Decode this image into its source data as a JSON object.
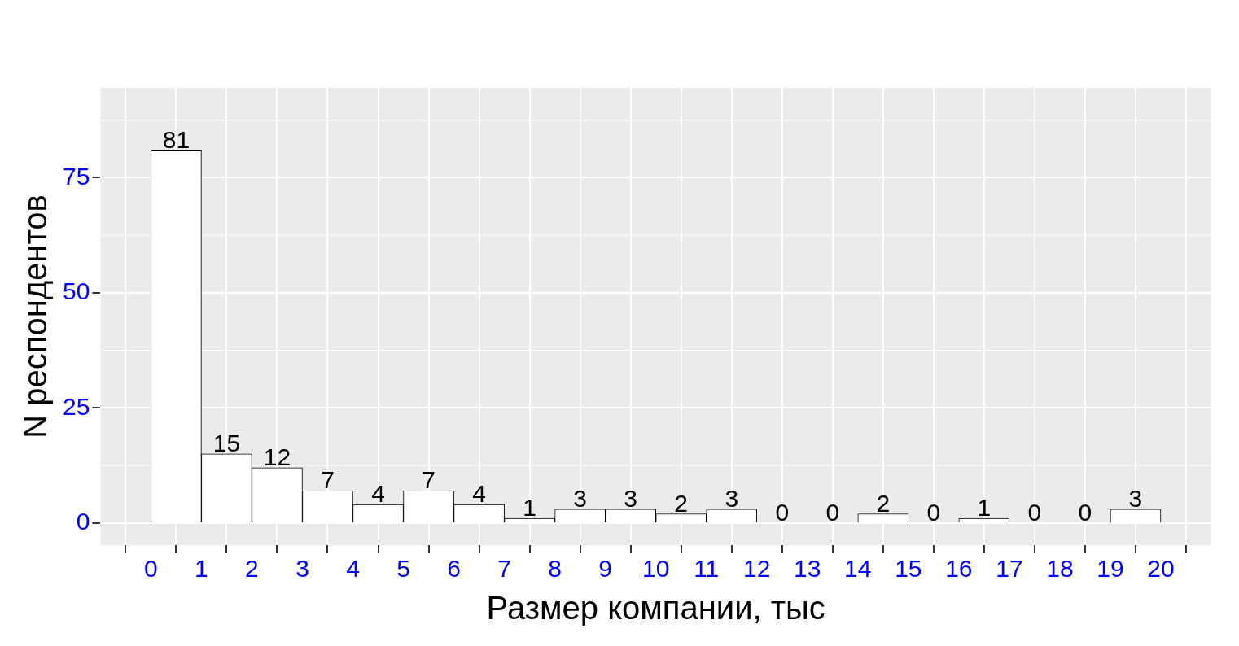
{
  "chart_data": {
    "type": "histogram",
    "xlabel": "Размер компании, тыс",
    "ylabel": "N респондентов",
    "bins": [
      0,
      1,
      2,
      3,
      4,
      5,
      6,
      7,
      8,
      9,
      10,
      11,
      12,
      13,
      14,
      15,
      16,
      17,
      18,
      19,
      20
    ],
    "values": [
      81,
      15,
      12,
      7,
      4,
      7,
      4,
      1,
      3,
      3,
      2,
      3,
      0,
      0,
      2,
      0,
      1,
      0,
      0,
      3
    ],
    "color": "#ffffff",
    "xlim": [
      -1,
      21
    ],
    "xticks": [
      0,
      1,
      2,
      3,
      4,
      5,
      6,
      7,
      8,
      9,
      10,
      11,
      12,
      13,
      14,
      15,
      16,
      17,
      18,
      19,
      20
    ],
    "ylim": [
      -4.8,
      94.5
    ],
    "yticks": [
      0,
      25,
      50,
      75
    ],
    "grid": true,
    "data_labels": true
  }
}
